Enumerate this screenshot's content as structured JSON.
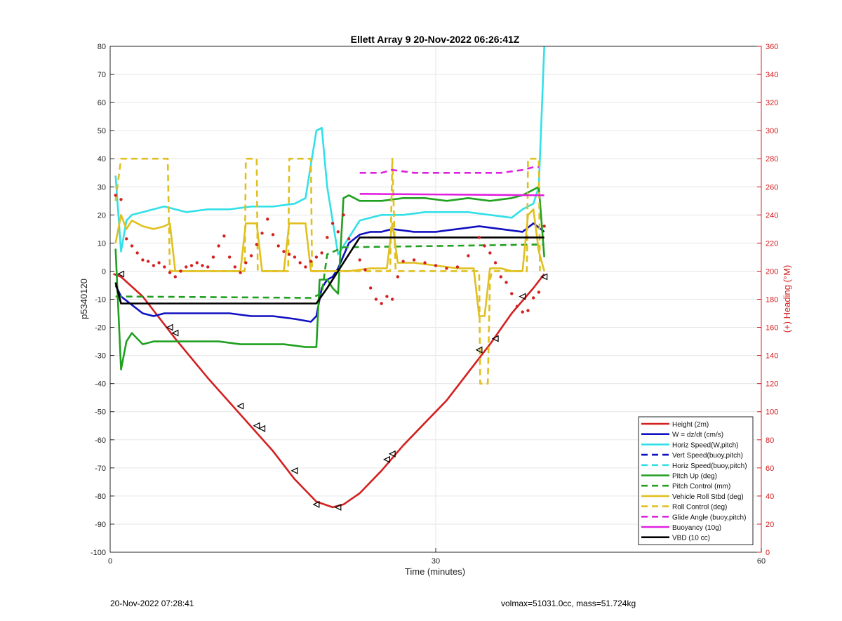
{
  "chart_data": {
    "type": "line",
    "title": "Ellett Array 9 20-Nov-2022 06:26:41Z",
    "xlabel": "Time (minutes)",
    "ylabel": "p5340120",
    "ylabel_right": "(+) Heading (°M)",
    "xlim": [
      0,
      60
    ],
    "ylim": [
      -100,
      80
    ],
    "ylim_right": [
      0,
      360
    ],
    "xticks": [
      0,
      30,
      60
    ],
    "yticks": [
      -100,
      -90,
      -80,
      -70,
      -60,
      -50,
      -40,
      -30,
      -20,
      -10,
      0,
      10,
      20,
      30,
      40,
      50,
      60,
      70,
      80
    ],
    "yticks_right": [
      0,
      20,
      40,
      60,
      80,
      100,
      120,
      140,
      160,
      180,
      200,
      220,
      240,
      260,
      280,
      300,
      320,
      340,
      360
    ],
    "grid": "on",
    "legend_position": "bottom-right",
    "colors": {
      "axis_right": "#d42020"
    },
    "series": [
      {
        "name": "Height (2m)",
        "color": "#d42020",
        "style": "solid",
        "x": [
          0.3,
          1,
          3,
          6,
          9,
          12,
          15,
          17,
          19,
          20.5,
          21.5,
          23,
          25,
          27,
          29,
          31,
          33,
          35,
          37,
          39,
          40
        ],
        "y": [
          -1,
          -2,
          -9,
          -24,
          -38,
          -51,
          -64,
          -74,
          -82,
          -84,
          -83,
          -79,
          -71,
          -62,
          -54,
          -46,
          -36,
          -26,
          -15,
          -6,
          -1
        ]
      },
      {
        "name": "W = dz/dt (cm/s)",
        "color": "#1010c0",
        "style": "solid",
        "x": [
          0.5,
          1,
          2,
          3,
          4,
          5,
          7,
          9,
          11,
          13,
          15,
          17,
          18.5,
          19,
          19.5,
          20,
          20.5,
          21,
          22,
          23,
          24,
          25,
          26,
          28,
          30,
          32,
          34,
          36,
          38,
          39,
          40
        ],
        "y": [
          -5,
          -9,
          -12,
          -15,
          -16,
          -15,
          -15,
          -15,
          -15,
          -16,
          -16,
          -17,
          -18,
          -16,
          -6,
          -3,
          -2,
          1,
          10,
          13,
          14,
          14,
          15,
          14,
          14,
          15,
          16,
          15,
          14,
          17,
          14
        ]
      },
      {
        "name": "Horiz Speed(W,pitch)",
        "color": "#33e0e8",
        "style": "solid",
        "x": [
          0.5,
          1,
          1.5,
          2,
          3,
          5,
          7,
          9,
          11,
          13,
          15,
          17,
          18,
          19,
          19.5,
          20,
          21,
          22,
          23,
          25,
          27,
          29,
          31,
          33,
          35,
          37,
          38,
          39,
          39.5,
          40
        ],
        "y": [
          34,
          7,
          18,
          20,
          21,
          23,
          21,
          22,
          22,
          23,
          23,
          24,
          26,
          50,
          51,
          30,
          6,
          12,
          18,
          20,
          20,
          21,
          21,
          21,
          20,
          19,
          22,
          24,
          30,
          80
        ]
      },
      {
        "name": "Vert Speed(buoy,pitch)",
        "color": "#1010c0",
        "style": "dashed",
        "x": [],
        "y": []
      },
      {
        "name": "Horiz Speed(buoy,pitch)",
        "color": "#33e0e8",
        "style": "dashed",
        "x": [],
        "y": []
      },
      {
        "name": "Pitch Up (deg)",
        "color": "#20a020",
        "style": "solid",
        "x": [
          0.5,
          1,
          1.5,
          2,
          3,
          4,
          6,
          8,
          10,
          12,
          14,
          16,
          18,
          19,
          19.3,
          20,
          20.5,
          21,
          21.5,
          22,
          23,
          25,
          27,
          29,
          31,
          33,
          35,
          37,
          38,
          39,
          39.5,
          40
        ],
        "y": [
          8,
          -35,
          -25,
          -22,
          -26,
          -25,
          -25,
          -25,
          -25,
          -26,
          -26,
          -26,
          -27,
          -27,
          -3,
          -3,
          -6,
          -8,
          26,
          27,
          25,
          25,
          26,
          26,
          25,
          26,
          25,
          26,
          27,
          29,
          30,
          5
        ]
      },
      {
        "name": "Pitch Control (mm)",
        "color": "#20a020",
        "style": "dashed",
        "x": [
          0.5,
          18.5,
          19.5,
          20,
          21.5,
          40
        ],
        "y": [
          -9,
          -9.5,
          -8,
          6,
          8.5,
          9.5
        ]
      },
      {
        "name": "Vehicle Roll Stbd (deg)",
        "color": "#e0c020",
        "style": "solid",
        "x": [
          0.5,
          1,
          1.5,
          2,
          3,
          4,
          5,
          5.5,
          6,
          7,
          8,
          9,
          10,
          11,
          12,
          12.5,
          13,
          13.5,
          14,
          15,
          16,
          16.5,
          17,
          17.5,
          18,
          18.5,
          19,
          19.5,
          20,
          22,
          24,
          25.5,
          26,
          26.5,
          28,
          30,
          32,
          33.5,
          34,
          34.5,
          35,
          35.5,
          36,
          37,
          38,
          38.5,
          39,
          39.5,
          40
        ],
        "y": [
          10,
          20,
          15,
          18,
          16,
          15,
          16,
          17,
          0,
          0,
          0,
          0,
          0,
          0,
          0,
          17,
          17,
          17,
          0,
          0,
          0,
          17,
          17,
          17,
          17,
          0,
          0,
          0,
          0,
          0,
          1,
          1,
          17,
          3,
          3,
          2,
          1,
          1,
          -16,
          -16,
          1,
          1,
          1,
          0,
          0,
          20,
          22,
          7,
          0
        ]
      },
      {
        "name": "Roll Control (deg)",
        "color": "#e0c020",
        "style": "dashed",
        "x": [
          0.5,
          1,
          1.5,
          5.3,
          5.5,
          12.4,
          12.5,
          13.5,
          13.6,
          16.4,
          16.5,
          18.5,
          18.6,
          25.8,
          26,
          26.3,
          34,
          34.1,
          34.8,
          35,
          35.2,
          38.4,
          38.5,
          39.5,
          39.6
        ],
        "y": [
          25,
          40,
          40,
          40,
          0,
          0,
          40,
          40,
          0,
          0,
          40,
          40,
          0,
          0,
          40,
          0,
          0,
          -40,
          -40,
          -3,
          0,
          0,
          40,
          40,
          0
        ]
      },
      {
        "name": "Glide Angle (buoy,pitch)",
        "color": "#e020e0",
        "style": "dashed",
        "x": [
          23,
          25,
          26,
          28,
          30,
          32,
          34,
          36,
          38,
          39,
          39.5
        ],
        "y": [
          35,
          35,
          36,
          35,
          35,
          35,
          35,
          35,
          36,
          37,
          37
        ]
      },
      {
        "name": "Buoyancy (10g)",
        "color": "#e020e0",
        "style": "solid",
        "x": [
          23,
          40
        ],
        "y": [
          27.5,
          27
        ]
      },
      {
        "name": "VBD (10 cc)",
        "color": "#000000",
        "style": "solid",
        "x": [
          0.5,
          1,
          19,
          20,
          21.5,
          23,
          40
        ],
        "y": [
          -4,
          -11.5,
          -11.5,
          -6,
          3,
          12,
          12
        ]
      }
    ],
    "heading_markers": {
      "color": "#d42020",
      "style": "dotted",
      "x": [
        0.5,
        1,
        1.5,
        2,
        2.5,
        3,
        3.5,
        4,
        4.5,
        5,
        5.5,
        6,
        6.5,
        7,
        7.5,
        8,
        8.5,
        9,
        9.5,
        10,
        10.5,
        11,
        11.5,
        12,
        12.5,
        13,
        13.5,
        14,
        14.5,
        15,
        15.5,
        16,
        16.5,
        17,
        17.5,
        18,
        18.5,
        19,
        19.5,
        20,
        20.5,
        21,
        21.5,
        22,
        23,
        23.5,
        24,
        24.5,
        25,
        25.5,
        26,
        26.5,
        27,
        28,
        29,
        30,
        31,
        32,
        33,
        34,
        34.5,
        35,
        35.5,
        36,
        36.5,
        37,
        37.5,
        38,
        38.5,
        39,
        39.5,
        40
      ],
      "heading": [
        254,
        251,
        223,
        218,
        213,
        208,
        207,
        204,
        206,
        203,
        199,
        196,
        200,
        203,
        204,
        206,
        204,
        203,
        210,
        218,
        225,
        210,
        203,
        199,
        206,
        211,
        219,
        227,
        237,
        226,
        218,
        214,
        212,
        210,
        206,
        203,
        207,
        210,
        213,
        224,
        234,
        228,
        240,
        223,
        208,
        201,
        188,
        180,
        177,
        182,
        180,
        196,
        207,
        208,
        206,
        204,
        202,
        203,
        211,
        224,
        218,
        213,
        206,
        196,
        192,
        184,
        175,
        171,
        172,
        181,
        185,
        232
      ]
    },
    "height_triangles": {
      "x": [
        1,
        5.5,
        6,
        12,
        13.5,
        14,
        17,
        19,
        21,
        25.5,
        26,
        34,
        35.5,
        38,
        40
      ],
      "y": [
        -1,
        -20,
        -22,
        -48,
        -55,
        -56,
        -71,
        -83,
        -84,
        -67,
        -65,
        -28,
        -24,
        -9,
        -2
      ]
    }
  },
  "footer": {
    "date": "20-Nov-2022 07:28:41",
    "info": "volmax=51031.0cc, mass=51.724kg"
  }
}
